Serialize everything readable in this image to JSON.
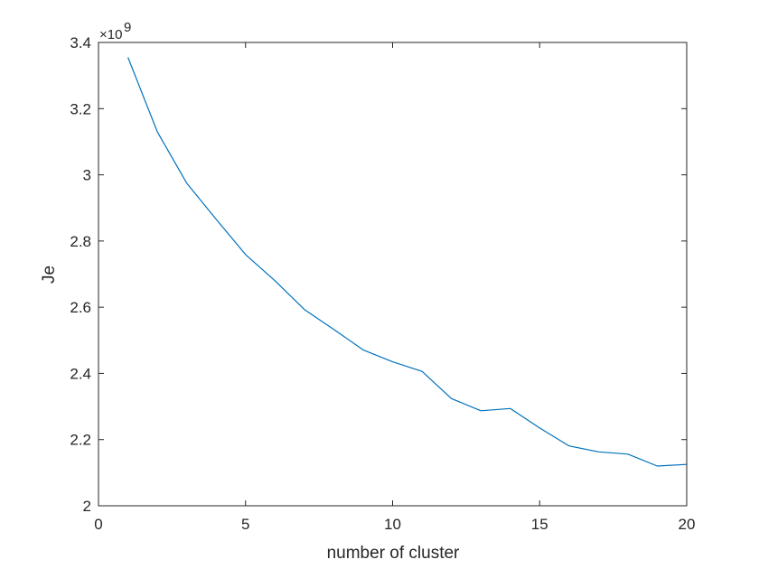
{
  "chart_data": {
    "type": "line",
    "title": "",
    "xlabel": "number of cluster",
    "ylabel": "Je",
    "xlim": [
      0,
      20
    ],
    "ylim": [
      2.0,
      3.4
    ],
    "y_multiplier_label": "×10",
    "y_multiplier_exponent": "9",
    "xticks": [
      0,
      5,
      10,
      15,
      20
    ],
    "xtick_labels": [
      "0",
      "5",
      "10",
      "15",
      "20"
    ],
    "yticks": [
      2.0,
      2.2,
      2.4,
      2.6,
      2.8,
      3.0,
      3.2,
      3.4
    ],
    "ytick_labels": [
      "2",
      "2.2",
      "2.4",
      "2.6",
      "2.8",
      "3",
      "3.2",
      "3.4"
    ],
    "grid": false,
    "legend": "none",
    "series": [
      {
        "color": "#0072BD",
        "x": [
          1,
          2,
          3,
          4,
          5,
          6,
          7,
          8,
          9,
          10,
          11,
          12,
          13,
          14,
          15,
          16,
          17,
          18,
          19,
          20
        ],
        "y": [
          3.355,
          3.13,
          2.975,
          2.866,
          2.759,
          2.68,
          2.593,
          2.533,
          2.471,
          2.435,
          2.406,
          2.324,
          2.287,
          2.294,
          2.235,
          2.181,
          2.163,
          2.156,
          2.12,
          2.125
        ]
      }
    ]
  }
}
